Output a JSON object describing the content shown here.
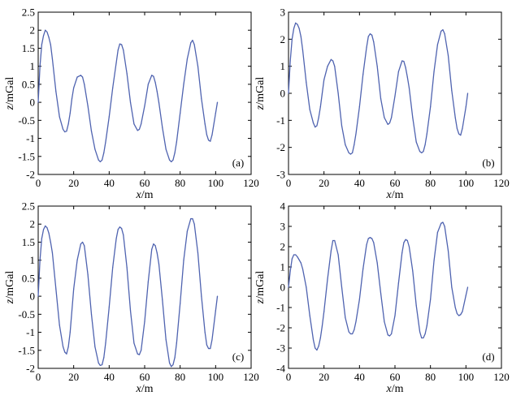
{
  "line_color": "#4f63b0",
  "chart_data": [
    {
      "type": "line",
      "panel_tag": "(a)",
      "xlabel_var": "x",
      "xlabel_unit": "/m",
      "ylabel_var": "z",
      "ylabel_unit": "/mGal",
      "xlim": [
        0,
        120
      ],
      "ylim": [
        -2,
        2.5
      ],
      "xticks": [
        0,
        20,
        40,
        60,
        80,
        100,
        120
      ],
      "yticks": [
        -2,
        -1.5,
        -1,
        -0.5,
        0,
        0.5,
        1,
        1.5,
        2,
        2.5
      ],
      "x": [
        0,
        1,
        2,
        3,
        4,
        5,
        6,
        7,
        8,
        10,
        12,
        14,
        15,
        16,
        17,
        18,
        19,
        20,
        22,
        24,
        25,
        26,
        28,
        30,
        32,
        34,
        35,
        36,
        37,
        38,
        40,
        42,
        44,
        45,
        46,
        47,
        48,
        50,
        52,
        54,
        56,
        57,
        58,
        60,
        62,
        64,
        65,
        66,
        67,
        68,
        70,
        72,
        74,
        75,
        76,
        77,
        78,
        80,
        82,
        84,
        86,
        87,
        88,
        90,
        92,
        94,
        95,
        96,
        97,
        98,
        100,
        101
      ],
      "series": [
        {
          "values": [
            0,
            1.0,
            1.6,
            1.85,
            2.0,
            1.95,
            1.8,
            1.6,
            1.2,
            0.3,
            -0.4,
            -0.75,
            -0.82,
            -0.8,
            -0.6,
            -0.3,
            0.1,
            0.4,
            0.7,
            0.75,
            0.7,
            0.5,
            -0.1,
            -0.8,
            -1.3,
            -1.6,
            -1.65,
            -1.6,
            -1.4,
            -1.1,
            -0.4,
            0.4,
            1.1,
            1.45,
            1.62,
            1.6,
            1.45,
            0.8,
            0.0,
            -0.6,
            -0.78,
            -0.75,
            -0.6,
            -0.1,
            0.5,
            0.75,
            0.72,
            0.55,
            0.3,
            0.0,
            -0.7,
            -1.3,
            -1.6,
            -1.65,
            -1.6,
            -1.4,
            -1.1,
            -0.3,
            0.5,
            1.2,
            1.65,
            1.72,
            1.6,
            1.0,
            0.1,
            -0.6,
            -0.9,
            -1.05,
            -1.08,
            -0.9,
            -0.3,
            0.0
          ]
        }
      ]
    },
    {
      "type": "line",
      "panel_tag": "(b)",
      "xlabel_var": "x",
      "xlabel_unit": "/m",
      "ylabel_var": "z",
      "ylabel_unit": "/mGal",
      "xlim": [
        0,
        120
      ],
      "ylim": [
        -3,
        3
      ],
      "xticks": [
        0,
        20,
        40,
        60,
        80,
        100,
        120
      ],
      "yticks": [
        -3,
        -2,
        -1,
        0,
        1,
        2,
        3
      ],
      "x": [
        0,
        1,
        2,
        3,
        4,
        5,
        6,
        7,
        8,
        10,
        12,
        14,
        15,
        16,
        17,
        18,
        19,
        20,
        22,
        24,
        25,
        26,
        28,
        30,
        32,
        34,
        35,
        36,
        37,
        38,
        40,
        42,
        44,
        45,
        46,
        47,
        48,
        50,
        52,
        54,
        56,
        57,
        58,
        60,
        62,
        64,
        65,
        66,
        67,
        68,
        70,
        72,
        74,
        75,
        76,
        77,
        78,
        80,
        82,
        84,
        86,
        87,
        88,
        90,
        92,
        94,
        95,
        96,
        97,
        98,
        100,
        101
      ],
      "series": [
        {
          "values": [
            0,
            1.2,
            2.0,
            2.4,
            2.6,
            2.55,
            2.4,
            2.1,
            1.6,
            0.4,
            -0.6,
            -1.1,
            -1.25,
            -1.2,
            -0.9,
            -0.5,
            0.0,
            0.5,
            1.0,
            1.25,
            1.2,
            1.0,
            0.0,
            -1.2,
            -1.9,
            -2.2,
            -2.25,
            -2.2,
            -1.9,
            -1.5,
            -0.5,
            0.7,
            1.7,
            2.1,
            2.2,
            2.15,
            1.9,
            1.0,
            -0.2,
            -0.9,
            -1.15,
            -1.1,
            -0.9,
            -0.1,
            0.8,
            1.2,
            1.18,
            0.95,
            0.6,
            0.2,
            -0.9,
            -1.8,
            -2.15,
            -2.2,
            -2.15,
            -1.9,
            -1.5,
            -0.5,
            0.8,
            1.8,
            2.3,
            2.35,
            2.2,
            1.4,
            0.1,
            -0.9,
            -1.3,
            -1.5,
            -1.55,
            -1.3,
            -0.5,
            0.0
          ]
        }
      ]
    },
    {
      "type": "line",
      "panel_tag": "(c)",
      "xlabel_var": "x",
      "xlabel_unit": "/m",
      "ylabel_var": "z",
      "ylabel_unit": "/mGal",
      "xlim": [
        0,
        120
      ],
      "ylim": [
        -2,
        2.5
      ],
      "xticks": [
        0,
        20,
        40,
        60,
        80,
        100,
        120
      ],
      "yticks": [
        -2,
        -1.5,
        -1,
        -0.5,
        0,
        0.5,
        1,
        1.5,
        2,
        2.5
      ],
      "x": [
        0,
        1,
        2,
        3,
        4,
        5,
        6,
        7,
        8,
        10,
        12,
        14,
        15,
        16,
        17,
        18,
        19,
        20,
        22,
        24,
        25,
        26,
        28,
        30,
        32,
        34,
        35,
        36,
        37,
        38,
        40,
        42,
        44,
        45,
        46,
        47,
        48,
        50,
        52,
        54,
        56,
        57,
        58,
        60,
        62,
        64,
        65,
        66,
        67,
        68,
        70,
        72,
        74,
        75,
        76,
        77,
        78,
        80,
        82,
        84,
        86,
        87,
        88,
        90,
        92,
        94,
        95,
        96,
        97,
        98,
        100,
        101
      ],
      "series": [
        {
          "values": [
            0,
            1.0,
            1.6,
            1.85,
            1.95,
            1.9,
            1.75,
            1.5,
            1.2,
            0.2,
            -0.8,
            -1.4,
            -1.55,
            -1.6,
            -1.4,
            -1.0,
            -0.4,
            0.2,
            1.0,
            1.45,
            1.5,
            1.4,
            0.6,
            -0.5,
            -1.4,
            -1.85,
            -1.92,
            -1.9,
            -1.7,
            -1.3,
            -0.3,
            0.8,
            1.6,
            1.85,
            1.92,
            1.88,
            1.7,
            0.8,
            -0.4,
            -1.3,
            -1.6,
            -1.62,
            -1.5,
            -0.7,
            0.4,
            1.3,
            1.45,
            1.4,
            1.2,
            0.9,
            -0.1,
            -1.2,
            -1.85,
            -1.95,
            -1.9,
            -1.7,
            -1.3,
            -0.2,
            1.0,
            1.8,
            2.15,
            2.15,
            2.0,
            1.2,
            0.0,
            -1.0,
            -1.35,
            -1.45,
            -1.45,
            -1.2,
            -0.4,
            0.0
          ]
        }
      ]
    },
    {
      "type": "line",
      "panel_tag": "(d)",
      "xlabel_var": "x",
      "xlabel_unit": "/m",
      "ylabel_var": "z",
      "ylabel_unit": "/mGal",
      "xlim": [
        0,
        120
      ],
      "ylim": [
        -4,
        4
      ],
      "xticks": [
        0,
        20,
        40,
        60,
        80,
        100,
        120
      ],
      "yticks": [
        -4,
        -3,
        -2,
        -1,
        0,
        1,
        2,
        3,
        4
      ],
      "x": [
        0,
        1,
        2,
        3,
        4,
        5,
        6,
        7,
        8,
        10,
        12,
        14,
        15,
        16,
        17,
        18,
        19,
        20,
        22,
        24,
        25,
        26,
        28,
        30,
        32,
        34,
        35,
        36,
        37,
        38,
        40,
        42,
        44,
        45,
        46,
        47,
        48,
        50,
        52,
        54,
        56,
        57,
        58,
        60,
        62,
        64,
        65,
        66,
        67,
        68,
        70,
        72,
        74,
        75,
        76,
        77,
        78,
        80,
        82,
        84,
        86,
        87,
        88,
        90,
        92,
        94,
        95,
        96,
        97,
        98,
        100,
        101
      ],
      "series": [
        {
          "values": [
            0,
            0.8,
            1.4,
            1.6,
            1.6,
            1.5,
            1.35,
            1.2,
            0.9,
            0.0,
            -1.4,
            -2.6,
            -3.0,
            -3.1,
            -2.9,
            -2.5,
            -1.9,
            -1.2,
            0.4,
            1.8,
            2.3,
            2.3,
            1.6,
            0.0,
            -1.5,
            -2.2,
            -2.3,
            -2.3,
            -2.1,
            -1.7,
            -0.6,
            0.9,
            2.1,
            2.4,
            2.45,
            2.4,
            2.2,
            1.2,
            -0.3,
            -1.7,
            -2.35,
            -2.4,
            -2.3,
            -1.4,
            0.2,
            1.7,
            2.2,
            2.35,
            2.3,
            2.0,
            0.8,
            -0.9,
            -2.2,
            -2.5,
            -2.5,
            -2.3,
            -1.9,
            -0.6,
            1.3,
            2.7,
            3.15,
            3.2,
            3.0,
            1.8,
            0.0,
            -1.0,
            -1.3,
            -1.4,
            -1.35,
            -1.2,
            -0.4,
            0.0
          ]
        }
      ]
    }
  ]
}
